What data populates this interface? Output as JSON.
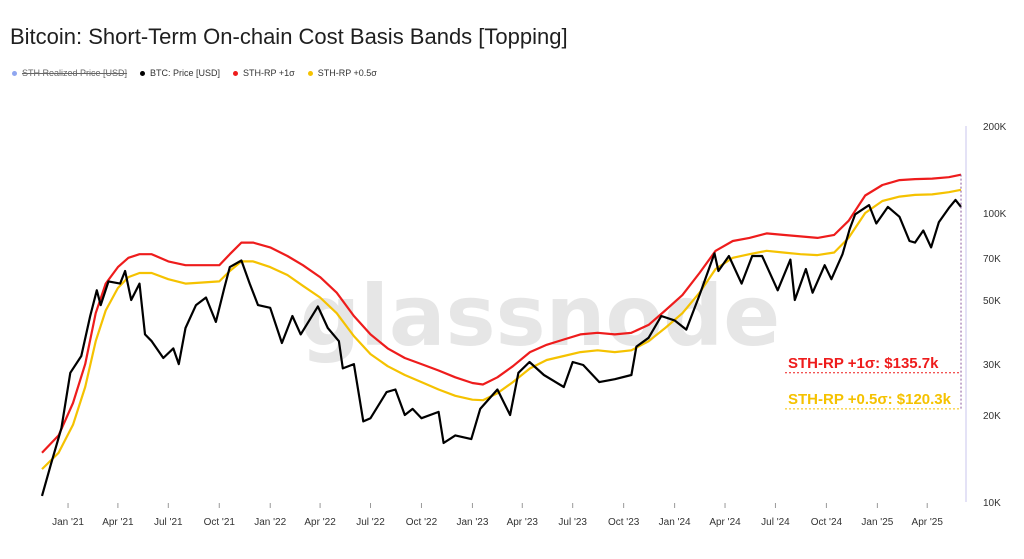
{
  "title": "Bitcoin: Short-Term On-chain Cost Basis Bands [Topping]",
  "watermark": "glassnode",
  "legend": [
    {
      "label": "STH Realized Price [USD]",
      "color": "#8fa6f0",
      "disabled": true
    },
    {
      "label": "BTC: Price [USD]",
      "color": "#000000",
      "disabled": false
    },
    {
      "label": "STH-RP +1σ",
      "color": "#ee1c1c",
      "disabled": false
    },
    {
      "label": "STH-RP +0.5σ",
      "color": "#f5c200",
      "disabled": false
    }
  ],
  "annotations": [
    {
      "text": "STH-RP +1σ: $135.7k",
      "color": "#ee1c1c",
      "value": 28000
    },
    {
      "text": "STH-RP +0.5σ: $120.3k",
      "color": "#f5c200",
      "value": 21000
    }
  ],
  "chart_data": {
    "type": "line",
    "title": "Bitcoin: Short-Term On-chain Cost Basis Bands [Topping]",
    "yscale": "log",
    "ylim": [
      10000,
      200000
    ],
    "xlim": [
      "2020-11-15",
      "2025-06-10"
    ],
    "y_ticks": [
      {
        "value": 10000,
        "label": "10K"
      },
      {
        "value": 20000,
        "label": "20K"
      },
      {
        "value": 30000,
        "label": "30K"
      },
      {
        "value": 50000,
        "label": "50K"
      },
      {
        "value": 70000,
        "label": "70K"
      },
      {
        "value": 100000,
        "label": "100K"
      },
      {
        "value": 200000,
        "label": "200K"
      }
    ],
    "x_ticks": [
      {
        "value": "2021-01-01",
        "label": "Jan '21"
      },
      {
        "value": "2021-04-01",
        "label": "Apr '21"
      },
      {
        "value": "2021-07-01",
        "label": "Jul '21"
      },
      {
        "value": "2021-10-01",
        "label": "Oct '21"
      },
      {
        "value": "2022-01-01",
        "label": "Jan '22"
      },
      {
        "value": "2022-04-01",
        "label": "Apr '22"
      },
      {
        "value": "2022-07-01",
        "label": "Jul '22"
      },
      {
        "value": "2022-10-01",
        "label": "Oct '22"
      },
      {
        "value": "2023-01-01",
        "label": "Jan '23"
      },
      {
        "value": "2023-04-01",
        "label": "Apr '23"
      },
      {
        "value": "2023-07-01",
        "label": "Jul '23"
      },
      {
        "value": "2023-10-01",
        "label": "Oct '23"
      },
      {
        "value": "2024-01-01",
        "label": "Jan '24"
      },
      {
        "value": "2024-04-01",
        "label": "Apr '24"
      },
      {
        "value": "2024-07-01",
        "label": "Jul '24"
      },
      {
        "value": "2024-10-01",
        "label": "Oct '24"
      },
      {
        "value": "2025-01-01",
        "label": "Jan '25"
      },
      {
        "value": "2025-04-01",
        "label": "Apr '25"
      }
    ],
    "series": [
      {
        "name": "STH-RP +1σ",
        "color": "#ee1c1c",
        "points": [
          [
            "2020-11-15",
            14800
          ],
          [
            "2020-12-15",
            17000
          ],
          [
            "2021-01-10",
            22000
          ],
          [
            "2021-02-01",
            30000
          ],
          [
            "2021-02-20",
            45000
          ],
          [
            "2021-03-10",
            57000
          ],
          [
            "2021-04-01",
            65000
          ],
          [
            "2021-04-20",
            70000
          ],
          [
            "2021-05-10",
            72000
          ],
          [
            "2021-06-01",
            72000
          ],
          [
            "2021-07-01",
            68000
          ],
          [
            "2021-08-01",
            66000
          ],
          [
            "2021-09-01",
            66000
          ],
          [
            "2021-10-01",
            66000
          ],
          [
            "2021-10-20",
            72000
          ],
          [
            "2021-11-10",
            79000
          ],
          [
            "2021-12-01",
            79000
          ],
          [
            "2022-01-01",
            76000
          ],
          [
            "2022-02-01",
            71000
          ],
          [
            "2022-03-01",
            66000
          ],
          [
            "2022-04-01",
            60000
          ],
          [
            "2022-05-01",
            53000
          ],
          [
            "2022-06-01",
            44000
          ],
          [
            "2022-07-01",
            38000
          ],
          [
            "2022-08-01",
            34000
          ],
          [
            "2022-09-01",
            31500
          ],
          [
            "2022-10-01",
            30000
          ],
          [
            "2022-11-01",
            28500
          ],
          [
            "2022-12-01",
            27000
          ],
          [
            "2023-01-01",
            25800
          ],
          [
            "2023-01-20",
            25500
          ],
          [
            "2023-02-15",
            27000
          ],
          [
            "2023-03-15",
            29500
          ],
          [
            "2023-04-15",
            33000
          ],
          [
            "2023-05-15",
            35000
          ],
          [
            "2023-06-15",
            36500
          ],
          [
            "2023-07-15",
            38000
          ],
          [
            "2023-08-15",
            38500
          ],
          [
            "2023-09-15",
            38000
          ],
          [
            "2023-10-15",
            38500
          ],
          [
            "2023-11-15",
            41000
          ],
          [
            "2023-12-15",
            46000
          ],
          [
            "2024-01-15",
            52000
          ],
          [
            "2024-02-15",
            62000
          ],
          [
            "2024-03-15",
            74000
          ],
          [
            "2024-04-15",
            80000
          ],
          [
            "2024-05-15",
            82000
          ],
          [
            "2024-06-15",
            85000
          ],
          [
            "2024-07-15",
            84000
          ],
          [
            "2024-08-15",
            83000
          ],
          [
            "2024-09-15",
            82000
          ],
          [
            "2024-10-15",
            84000
          ],
          [
            "2024-11-10",
            94000
          ],
          [
            "2024-12-10",
            115000
          ],
          [
            "2025-01-10",
            125000
          ],
          [
            "2025-02-10",
            130000
          ],
          [
            "2025-03-10",
            131000
          ],
          [
            "2025-04-10",
            131500
          ],
          [
            "2025-05-10",
            133000
          ],
          [
            "2025-06-01",
            135700
          ]
        ]
      },
      {
        "name": "STH-RP +0.5σ",
        "color": "#f5c200",
        "points": [
          [
            "2020-11-15",
            13000
          ],
          [
            "2020-12-15",
            14800
          ],
          [
            "2021-01-10",
            18500
          ],
          [
            "2021-02-01",
            25000
          ],
          [
            "2021-02-20",
            36000
          ],
          [
            "2021-03-10",
            46000
          ],
          [
            "2021-04-01",
            55000
          ],
          [
            "2021-04-20",
            60000
          ],
          [
            "2021-05-10",
            62000
          ],
          [
            "2021-06-01",
            62000
          ],
          [
            "2021-07-01",
            59000
          ],
          [
            "2021-08-01",
            57000
          ],
          [
            "2021-09-01",
            57500
          ],
          [
            "2021-10-01",
            58000
          ],
          [
            "2021-10-20",
            63000
          ],
          [
            "2021-11-10",
            68000
          ],
          [
            "2021-12-01",
            68000
          ],
          [
            "2022-01-01",
            65000
          ],
          [
            "2022-02-01",
            61000
          ],
          [
            "2022-03-01",
            56000
          ],
          [
            "2022-04-01",
            51000
          ],
          [
            "2022-05-01",
            45000
          ],
          [
            "2022-06-01",
            37500
          ],
          [
            "2022-07-01",
            32500
          ],
          [
            "2022-08-01",
            29500
          ],
          [
            "2022-09-01",
            27500
          ],
          [
            "2022-10-01",
            26000
          ],
          [
            "2022-11-01",
            24500
          ],
          [
            "2022-12-01",
            23300
          ],
          [
            "2023-01-01",
            22600
          ],
          [
            "2023-01-20",
            22500
          ],
          [
            "2023-02-15",
            23800
          ],
          [
            "2023-03-15",
            26000
          ],
          [
            "2023-04-15",
            29000
          ],
          [
            "2023-05-15",
            31000
          ],
          [
            "2023-06-15",
            32000
          ],
          [
            "2023-07-15",
            33000
          ],
          [
            "2023-08-15",
            33500
          ],
          [
            "2023-09-15",
            33000
          ],
          [
            "2023-10-15",
            33500
          ],
          [
            "2023-11-15",
            36000
          ],
          [
            "2023-12-15",
            40000
          ],
          [
            "2024-01-15",
            45000
          ],
          [
            "2024-02-15",
            53000
          ],
          [
            "2024-03-15",
            64000
          ],
          [
            "2024-04-15",
            70000
          ],
          [
            "2024-05-15",
            72000
          ],
          [
            "2024-06-15",
            74000
          ],
          [
            "2024-07-15",
            73000
          ],
          [
            "2024-08-15",
            72000
          ],
          [
            "2024-09-15",
            71500
          ],
          [
            "2024-10-15",
            73000
          ],
          [
            "2024-11-10",
            82000
          ],
          [
            "2024-12-10",
            100000
          ],
          [
            "2025-01-10",
            110000
          ],
          [
            "2025-02-10",
            114000
          ],
          [
            "2025-03-10",
            115500
          ],
          [
            "2025-04-10",
            116000
          ],
          [
            "2025-05-10",
            118000
          ],
          [
            "2025-06-01",
            120300
          ]
        ]
      },
      {
        "name": "BTC: Price [USD]",
        "color": "#000000",
        "points": [
          [
            "2020-11-15",
            10500
          ],
          [
            "2020-12-01",
            13500
          ],
          [
            "2020-12-20",
            18000
          ],
          [
            "2021-01-05",
            28000
          ],
          [
            "2021-01-25",
            32000
          ],
          [
            "2021-02-10",
            44000
          ],
          [
            "2021-02-22",
            54000
          ],
          [
            "2021-03-01",
            48000
          ],
          [
            "2021-03-15",
            58000
          ],
          [
            "2021-04-05",
            57000
          ],
          [
            "2021-04-14",
            63000
          ],
          [
            "2021-04-25",
            50000
          ],
          [
            "2021-05-10",
            57000
          ],
          [
            "2021-05-20",
            38000
          ],
          [
            "2021-06-01",
            36000
          ],
          [
            "2021-06-22",
            31500
          ],
          [
            "2021-07-10",
            34000
          ],
          [
            "2021-07-20",
            30000
          ],
          [
            "2021-08-01",
            40000
          ],
          [
            "2021-08-20",
            48000
          ],
          [
            "2021-09-07",
            51000
          ],
          [
            "2021-09-25",
            42000
          ],
          [
            "2021-10-10",
            55000
          ],
          [
            "2021-10-20",
            65000
          ],
          [
            "2021-11-10",
            68500
          ],
          [
            "2021-11-25",
            57000
          ],
          [
            "2021-12-10",
            48000
          ],
          [
            "2022-01-01",
            47000
          ],
          [
            "2022-01-22",
            35500
          ],
          [
            "2022-02-10",
            44000
          ],
          [
            "2022-02-25",
            38000
          ],
          [
            "2022-03-28",
            47500
          ],
          [
            "2022-04-15",
            40000
          ],
          [
            "2022-05-05",
            36000
          ],
          [
            "2022-05-12",
            29000
          ],
          [
            "2022-06-01",
            30000
          ],
          [
            "2022-06-18",
            19000
          ],
          [
            "2022-07-01",
            19500
          ],
          [
            "2022-07-30",
            24000
          ],
          [
            "2022-08-15",
            24500
          ],
          [
            "2022-09-01",
            20000
          ],
          [
            "2022-09-15",
            21000
          ],
          [
            "2022-10-01",
            19500
          ],
          [
            "2022-11-01",
            20500
          ],
          [
            "2022-11-10",
            16000
          ],
          [
            "2022-12-01",
            17000
          ],
          [
            "2022-12-30",
            16500
          ],
          [
            "2023-01-15",
            21000
          ],
          [
            "2023-02-15",
            24500
          ],
          [
            "2023-03-10",
            20000
          ],
          [
            "2023-03-25",
            28000
          ],
          [
            "2023-04-14",
            30500
          ],
          [
            "2023-05-10",
            27500
          ],
          [
            "2023-06-15",
            25000
          ],
          [
            "2023-07-01",
            30500
          ],
          [
            "2023-07-20",
            29800
          ],
          [
            "2023-08-18",
            26000
          ],
          [
            "2023-09-15",
            26600
          ],
          [
            "2023-10-15",
            27500
          ],
          [
            "2023-10-24",
            34500
          ],
          [
            "2023-11-15",
            37000
          ],
          [
            "2023-12-08",
            44000
          ],
          [
            "2024-01-01",
            42500
          ],
          [
            "2024-01-22",
            39500
          ],
          [
            "2024-02-15",
            52000
          ],
          [
            "2024-03-13",
            72500
          ],
          [
            "2024-03-20",
            63000
          ],
          [
            "2024-04-08",
            71000
          ],
          [
            "2024-05-01",
            57000
          ],
          [
            "2024-05-20",
            71000
          ],
          [
            "2024-06-07",
            71000
          ],
          [
            "2024-07-05",
            54000
          ],
          [
            "2024-07-28",
            69000
          ],
          [
            "2024-08-05",
            50000
          ],
          [
            "2024-08-25",
            64000
          ],
          [
            "2024-09-06",
            53000
          ],
          [
            "2024-09-28",
            66000
          ],
          [
            "2024-10-10",
            59000
          ],
          [
            "2024-10-30",
            72000
          ],
          [
            "2024-11-12",
            88000
          ],
          [
            "2024-11-22",
            99000
          ],
          [
            "2024-12-17",
            106500
          ],
          [
            "2024-12-30",
            92000
          ],
          [
            "2025-01-20",
            105000
          ],
          [
            "2025-02-10",
            97000
          ],
          [
            "2025-02-28",
            80000
          ],
          [
            "2025-03-10",
            79000
          ],
          [
            "2025-03-25",
            87000
          ],
          [
            "2025-04-08",
            76000
          ],
          [
            "2025-04-22",
            93000
          ],
          [
            "2025-05-10",
            104000
          ],
          [
            "2025-05-22",
            111000
          ],
          [
            "2025-06-01",
            105000
          ]
        ]
      }
    ]
  }
}
